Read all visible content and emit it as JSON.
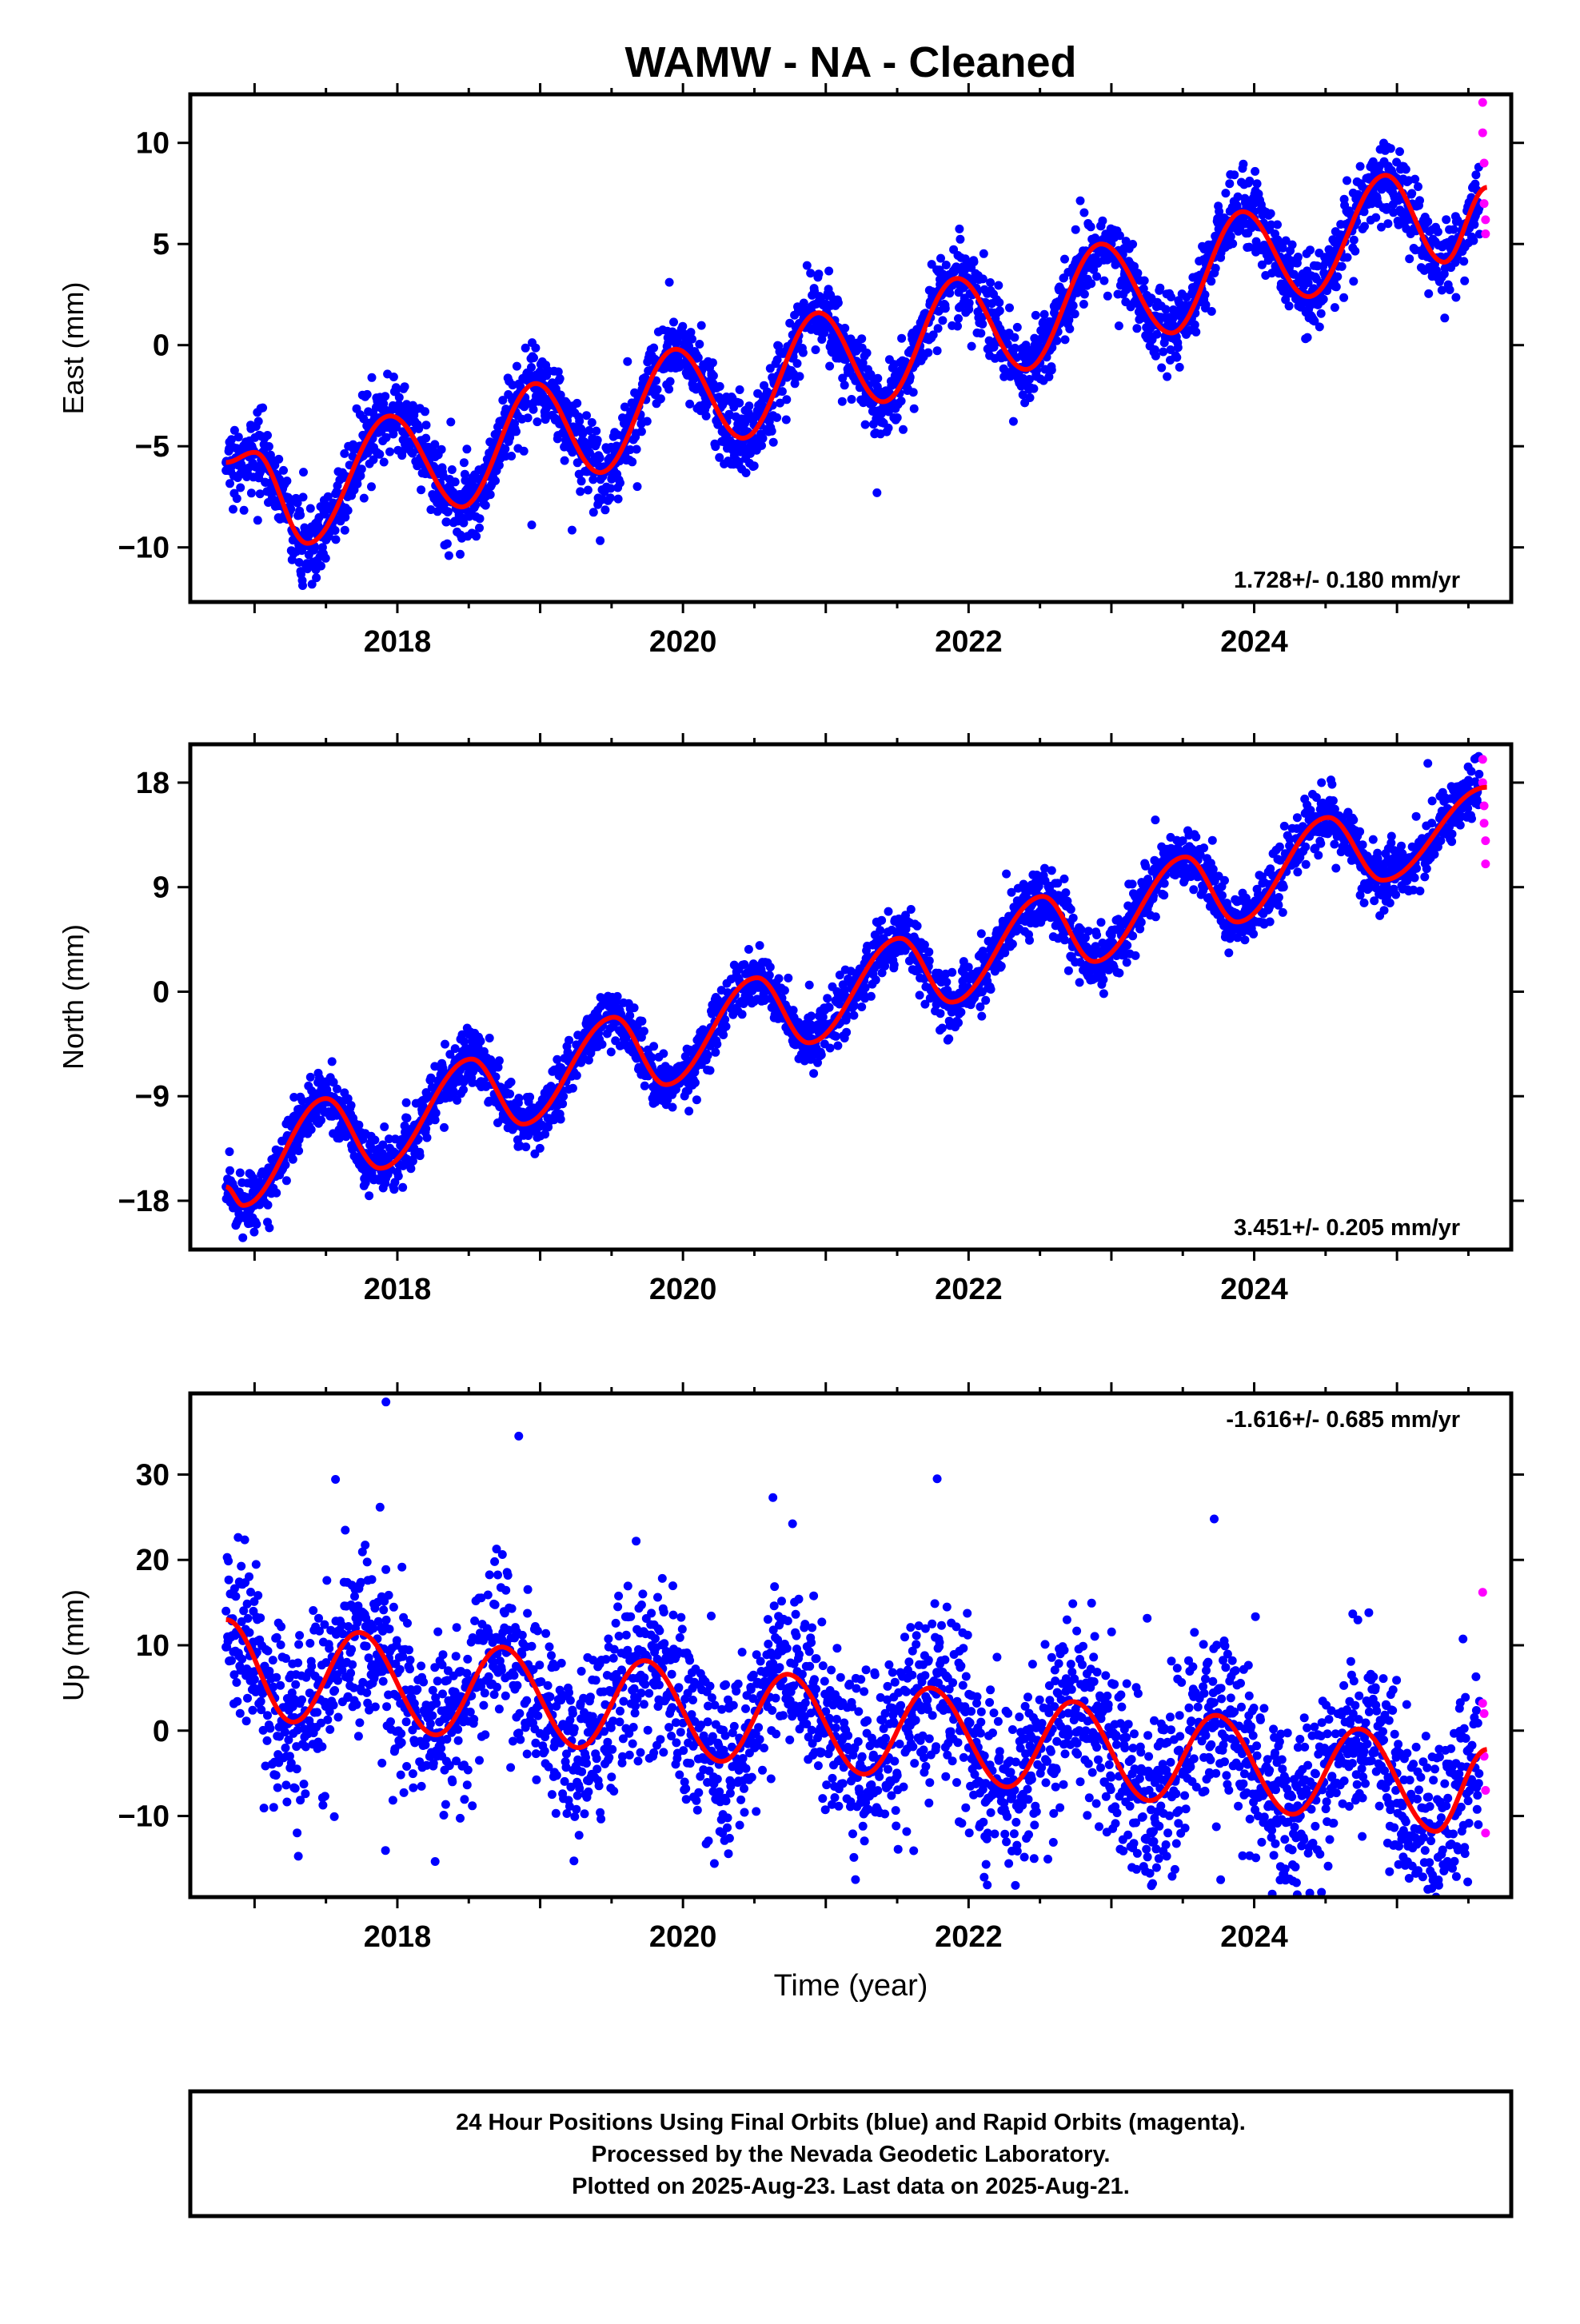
{
  "title": "WAMW  - NA - Cleaned",
  "xlabel": "Time (year)",
  "colors": {
    "final": "#0000ff",
    "rapid": "#ff00ff",
    "model": "#ff0000"
  },
  "footer": {
    "line1": "24 Hour Positions Using Final Orbits (blue) and Rapid Orbits (magenta).",
    "line2": "Processed by the Nevada Geodetic Laboratory.",
    "line3": "Plotted on 2025-Aug-23. Last data on 2025-Aug-21."
  },
  "chart_data": [
    {
      "type": "scatter",
      "panel": "east",
      "ylabel": "East (mm)",
      "rate_label": "1.728+/- 0.180 mm/yr",
      "xlim": [
        2016.55,
        2025.8
      ],
      "ylim": [
        -12.7,
        12.4
      ],
      "xticks": [
        2018,
        2020,
        2022,
        2024
      ],
      "yticks": [
        -10,
        -5,
        0,
        5,
        10
      ],
      "start": 2016.8,
      "end": 2025.63,
      "rapid_start": 2025.58,
      "series": [
        {
          "role": "final-orbits-points",
          "sampled": [
            [
              2016.8,
              -6.2
            ],
            [
              2017.0,
              -5.4
            ],
            [
              2017.2,
              -7.0
            ],
            [
              2017.37,
              -9.8
            ],
            [
              2017.55,
              -7.8
            ],
            [
              2017.8,
              -4.2
            ],
            [
              2018.0,
              -3.6
            ],
            [
              2018.2,
              -4.6
            ],
            [
              2018.45,
              -8.0
            ],
            [
              2018.6,
              -6.6
            ],
            [
              2018.8,
              -3.2
            ],
            [
              2019.0,
              -2.0
            ],
            [
              2019.2,
              -3.2
            ],
            [
              2019.42,
              -6.3
            ],
            [
              2019.6,
              -4.4
            ],
            [
              2019.85,
              -0.8
            ],
            [
              2020.0,
              -0.2
            ],
            [
              2020.2,
              -1.4
            ],
            [
              2020.4,
              -4.5
            ],
            [
              2020.6,
              -2.4
            ],
            [
              2020.85,
              1.2
            ],
            [
              2021.0,
              1.5
            ],
            [
              2021.2,
              0.0
            ],
            [
              2021.4,
              -2.8
            ],
            [
              2021.6,
              -0.4
            ],
            [
              2021.8,
              3.0
            ],
            [
              2022.0,
              3.3
            ],
            [
              2022.2,
              1.6
            ],
            [
              2022.4,
              -1.2
            ],
            [
              2022.6,
              1.6
            ],
            [
              2022.9,
              5.0
            ],
            [
              2023.0,
              5.0
            ],
            [
              2023.2,
              3.2
            ],
            [
              2023.42,
              0.6
            ],
            [
              2023.6,
              3.4
            ],
            [
              2023.9,
              6.6
            ],
            [
              2024.0,
              6.6
            ],
            [
              2024.2,
              4.8
            ],
            [
              2024.4,
              2.3
            ],
            [
              2024.6,
              5.0
            ],
            [
              2024.9,
              8.4
            ],
            [
              2025.0,
              8.2
            ],
            [
              2025.2,
              6.0
            ],
            [
              2025.35,
              4.2
            ],
            [
              2025.55,
              6.4
            ]
          ]
        },
        {
          "role": "rapid-orbits-points",
          "sampled": [
            [
              2025.6,
              12.0
            ],
            [
              2025.6,
              10.5
            ],
            [
              2025.61,
              9.0
            ],
            [
              2025.61,
              7.0
            ],
            [
              2025.62,
              6.2
            ],
            [
              2025.62,
              5.5
            ]
          ]
        },
        {
          "role": "model-fit",
          "x": [
            2016.8,
            2017.0,
            2017.37,
            2017.95,
            2018.45,
            2018.97,
            2019.42,
            2019.95,
            2020.42,
            2020.95,
            2021.4,
            2021.92,
            2022.4,
            2022.93,
            2023.42,
            2023.92,
            2024.38,
            2024.92,
            2025.33,
            2025.63
          ],
          "y": [
            -5.8,
            -5.3,
            -9.8,
            -3.5,
            -8.0,
            -1.9,
            -6.3,
            -0.2,
            -4.6,
            1.6,
            -2.8,
            3.3,
            -1.2,
            5.0,
            0.6,
            6.6,
            2.4,
            8.4,
            4.1,
            7.8
          ]
        }
      ]
    },
    {
      "type": "scatter",
      "panel": "north",
      "ylabel": "North (mm)",
      "rate_label": "3.451+/- 0.205 mm/yr",
      "xlim": [
        2016.55,
        2025.8
      ],
      "ylim": [
        -22.2,
        21.3
      ],
      "xticks": [
        2018,
        2020,
        2022,
        2024
      ],
      "yticks": [
        -18,
        -9,
        0,
        9,
        18
      ],
      "start": 2016.8,
      "end": 2025.63,
      "rapid_start": 2025.58,
      "series": [
        {
          "role": "final-orbits-points",
          "sampled": [
            [
              2016.8,
              -16.8
            ],
            [
              2016.9,
              -19.5
            ],
            [
              2017.0,
              -18.4
            ],
            [
              2017.3,
              -13.2
            ],
            [
              2017.5,
              -9.5
            ],
            [
              2017.75,
              -14.0
            ],
            [
              2017.9,
              -15.8
            ],
            [
              2018.2,
              -11.8
            ],
            [
              2018.55,
              -6.0
            ],
            [
              2018.9,
              -11.0
            ],
            [
              2019.2,
              -8.4
            ],
            [
              2019.5,
              -2.2
            ],
            [
              2019.9,
              -7.8
            ],
            [
              2020.2,
              -4.2
            ],
            [
              2020.5,
              1.0
            ],
            [
              2020.85,
              -4.0
            ],
            [
              2021.2,
              -1.2
            ],
            [
              2021.5,
              4.2
            ],
            [
              2021.85,
              -1.0
            ],
            [
              2022.2,
              3.2
            ],
            [
              2022.5,
              8.2
            ],
            [
              2022.85,
              2.6
            ],
            [
              2023.2,
              5.4
            ],
            [
              2023.55,
              11.4
            ],
            [
              2023.85,
              6.2
            ],
            [
              2024.2,
              9.2
            ],
            [
              2024.55,
              14.8
            ],
            [
              2024.9,
              9.8
            ],
            [
              2025.2,
              13.0
            ],
            [
              2025.5,
              18.2
            ]
          ]
        },
        {
          "role": "rapid-orbits-points",
          "sampled": [
            [
              2025.6,
              20.0
            ],
            [
              2025.6,
              18.0
            ],
            [
              2025.61,
              16.0
            ],
            [
              2025.61,
              14.5
            ],
            [
              2025.62,
              13.0
            ],
            [
              2025.62,
              11.0
            ]
          ]
        },
        {
          "role": "model-fit",
          "x": [
            2016.8,
            2016.92,
            2017.5,
            2017.88,
            2018.52,
            2018.88,
            2019.52,
            2019.88,
            2020.52,
            2020.88,
            2021.52,
            2021.88,
            2022.52,
            2022.88,
            2023.52,
            2023.88,
            2024.52,
            2024.9,
            2025.63
          ],
          "y": [
            -16.8,
            -18.4,
            -9.2,
            -15.2,
            -5.8,
            -11.4,
            -2.2,
            -8.0,
            1.2,
            -4.4,
            4.6,
            -0.9,
            8.2,
            2.6,
            11.6,
            6.0,
            15.0,
            9.6,
            17.6
          ]
        }
      ]
    },
    {
      "type": "scatter",
      "panel": "up",
      "ylabel": "Up (mm)",
      "rate_label": "-1.616+/- 0.685 mm/yr",
      "xlim": [
        2016.55,
        2025.8
      ],
      "ylim": [
        -19.5,
        39.5
      ],
      "xticks": [
        2018,
        2020,
        2022,
        2024
      ],
      "yticks": [
        -10,
        0,
        10,
        20,
        30
      ],
      "start": 2016.8,
      "end": 2025.63,
      "rapid_start": 2025.58,
      "series": [
        {
          "role": "final-orbits-points",
          "sampled": [
            [
              2016.8,
              14.0
            ],
            [
              2017.0,
              6.0
            ],
            [
              2017.3,
              1.0
            ],
            [
              2017.7,
              11.0
            ],
            [
              2018.0,
              4.0
            ],
            [
              2018.3,
              -1.0
            ],
            [
              2018.7,
              9.0
            ],
            [
              2019.0,
              3.0
            ],
            [
              2019.3,
              -2.0
            ],
            [
              2019.7,
              8.0
            ],
            [
              2020.0,
              2.0
            ],
            [
              2020.3,
              -3.0
            ],
            [
              2020.7,
              6.0
            ],
            [
              2021.0,
              1.0
            ],
            [
              2021.3,
              -5.0
            ],
            [
              2021.7,
              4.0
            ],
            [
              2022.0,
              -2.0
            ],
            [
              2022.3,
              -6.0
            ],
            [
              2022.7,
              5.0
            ],
            [
              2023.0,
              -3.0
            ],
            [
              2023.3,
              -8.0
            ],
            [
              2023.7,
              2.0
            ],
            [
              2024.0,
              -5.0
            ],
            [
              2024.3,
              -9.0
            ],
            [
              2024.7,
              0.0
            ],
            [
              2025.0,
              -5.0
            ],
            [
              2025.3,
              -11.0
            ],
            [
              2025.5,
              -6.0
            ],
            [
              2017.92,
              38.5
            ],
            [
              2018.85,
              34.5
            ],
            [
              2021.78,
              29.5
            ],
            [
              2023.72,
              24.8
            ],
            [
              2020.63,
              27.3
            ]
          ]
        },
        {
          "role": "rapid-orbits-points",
          "sampled": [
            [
              2025.6,
              16.2
            ],
            [
              2025.6,
              3.2
            ],
            [
              2025.61,
              2.0
            ],
            [
              2025.61,
              -3.0
            ],
            [
              2025.62,
              -7.0
            ],
            [
              2025.62,
              -12.0
            ]
          ]
        },
        {
          "role": "model-fit",
          "x": [
            2016.8,
            2017.27,
            2017.73,
            2018.27,
            2018.73,
            2019.27,
            2019.73,
            2020.27,
            2020.73,
            2021.27,
            2021.73,
            2022.27,
            2022.73,
            2023.27,
            2023.73,
            2024.27,
            2024.73,
            2025.27,
            2025.63
          ],
          "y": [
            13.0,
            1.0,
            11.5,
            -0.5,
            9.8,
            -2.0,
            8.2,
            -3.6,
            6.6,
            -5.1,
            5.0,
            -6.6,
            3.4,
            -8.2,
            1.8,
            -9.8,
            0.2,
            -11.8,
            -2.2
          ]
        }
      ]
    }
  ]
}
